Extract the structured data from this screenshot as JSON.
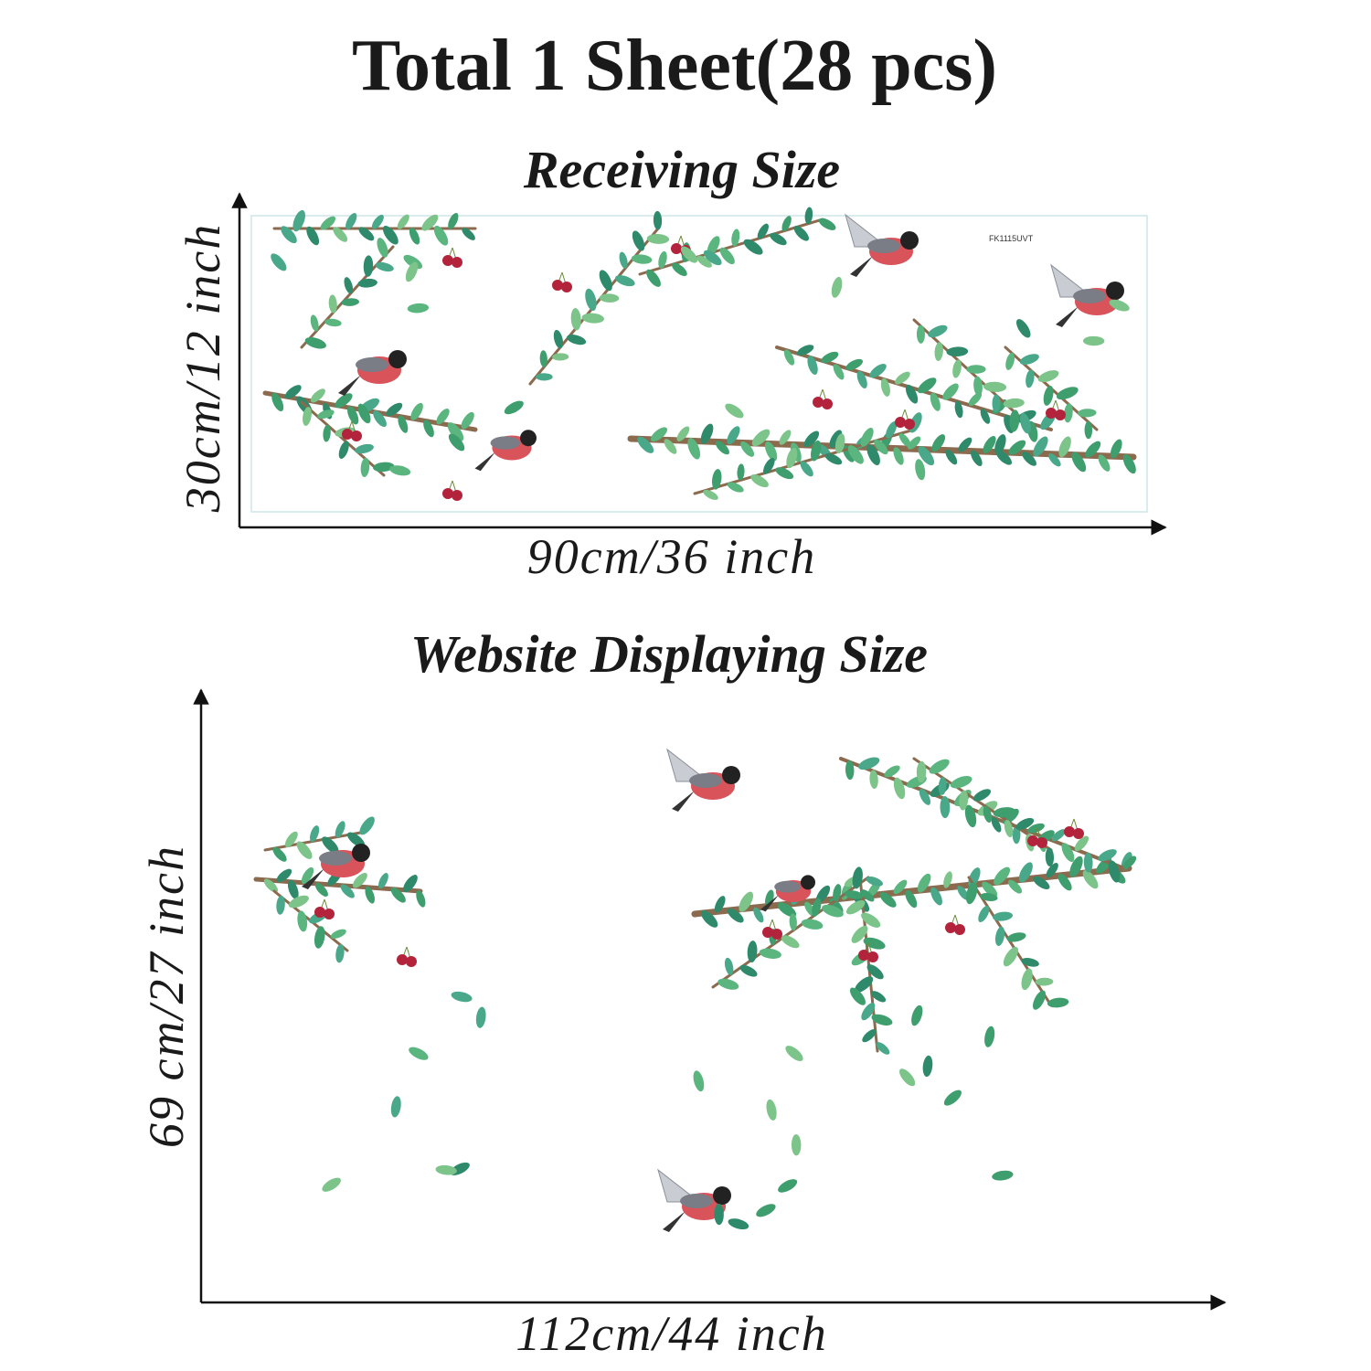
{
  "title": "Total 1 Sheet(28 pcs)",
  "receiving": {
    "heading": "Receiving Size",
    "code": "FK1115UVT",
    "height": "30cm/12 inch",
    "width": "90cm/36 inch"
  },
  "display": {
    "heading": "Website Displaying Size",
    "height": "69 cm/27 inch",
    "width": "112cm/44 inch"
  }
}
